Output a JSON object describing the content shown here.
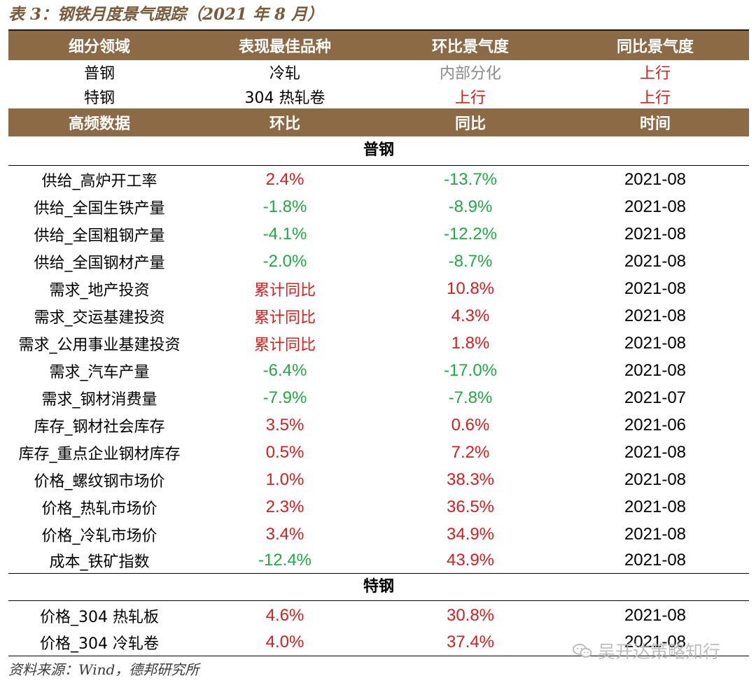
{
  "title": "表 3：钢铁月度景气跟踪（2021 年 8 月）",
  "header1": [
    "细分领域",
    "表现最佳品种",
    "环比景气度",
    "同比景气度"
  ],
  "summary_rows": [
    {
      "domain": "普钢",
      "best": "冷轧",
      "mom": "内部分化",
      "yoy": "上行"
    },
    {
      "domain": "特钢",
      "best": "304 热轧卷",
      "mom": "上行",
      "yoy": "上行"
    }
  ],
  "header2": [
    "高频数据",
    "环比",
    "同比",
    "时间"
  ],
  "section1": "普钢",
  "rows1": [
    {
      "name": "供给_高炉开工率",
      "mom": "2.4%",
      "yoy": "-13.7%",
      "time": "2021-08"
    },
    {
      "name": "供给_全国生铁产量",
      "mom": "-1.8%",
      "yoy": "-8.9%",
      "time": "2021-08"
    },
    {
      "name": "供给_全国粗钢产量",
      "mom": "-4.1%",
      "yoy": "-12.2%",
      "time": "2021-08"
    },
    {
      "name": "供给_全国钢材产量",
      "mom": "-2.0%",
      "yoy": "-8.7%",
      "time": "2021-08"
    },
    {
      "name": "需求_地产投资",
      "mom": "累计同比",
      "yoy": "10.8%",
      "time": "2021-08"
    },
    {
      "name": "需求_交运基建投资",
      "mom": "累计同比",
      "yoy": "4.3%",
      "time": "2021-08"
    },
    {
      "name": "需求_公用事业基建投资",
      "mom": "累计同比",
      "yoy": "1.8%",
      "time": "2021-08"
    },
    {
      "name": "需求_汽车产量",
      "mom": "-6.4%",
      "yoy": "-17.0%",
      "time": "2021-08"
    },
    {
      "name": "需求_钢材消费量",
      "mom": "-7.9%",
      "yoy": "-7.8%",
      "time": "2021-07"
    },
    {
      "name": "库存_钢材社会库存",
      "mom": "3.5%",
      "yoy": "0.6%",
      "time": "2021-06"
    },
    {
      "name": "库存_重点企业钢材库存",
      "mom": "0.5%",
      "yoy": "7.2%",
      "time": "2021-08"
    },
    {
      "name": "价格_螺纹钢市场价",
      "mom": "1.0%",
      "yoy": "38.3%",
      "time": "2021-08"
    },
    {
      "name": "价格_热轧市场价",
      "mom": "2.3%",
      "yoy": "36.5%",
      "time": "2021-08"
    },
    {
      "name": "价格_冷轧市场价",
      "mom": "3.4%",
      "yoy": "34.9%",
      "time": "2021-08"
    },
    {
      "name": "成本_铁矿指数",
      "mom": "-12.4%",
      "yoy": "43.9%",
      "time": "2021-08"
    }
  ],
  "section2": "特钢",
  "rows2": [
    {
      "name": "价格_304 热轧板",
      "mom": "4.6%",
      "yoy": "30.8%",
      "time": "2021-08"
    },
    {
      "name": "价格_304 冷轧卷",
      "mom": "4.0%",
      "yoy": "37.4%",
      "time": "2021-08"
    }
  ],
  "source": "资料来源：Wind，德邦研究所",
  "watermark": "吴开达策略知行",
  "colors": {
    "header_bg": "#8b6a45",
    "red": "#d21f1f",
    "green": "#22a845",
    "gray": "#8a8a8a"
  }
}
